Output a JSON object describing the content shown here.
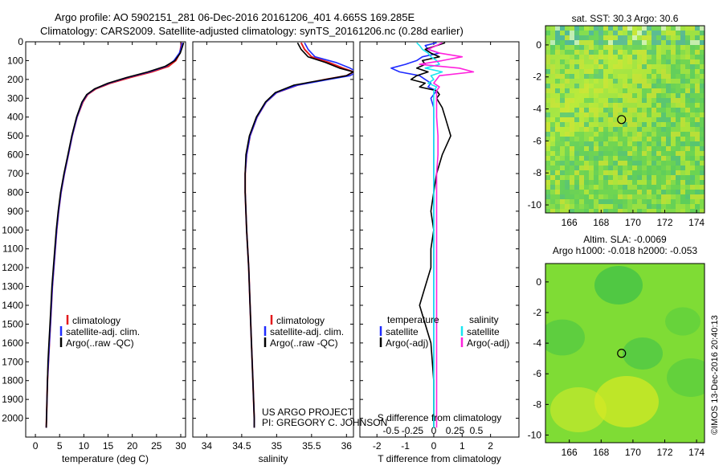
{
  "header": {
    "line1": "Argo profile: AO 5902151_281 06-Dec-2016 20161206_401 4.665S 169.285E",
    "line2": "Climatology: CARS2009. Satellite-adjusted climatology: synTS_20161206.nc (0.28d earlier)"
  },
  "map_sst": {
    "title": "sat. SST: 30.3 Argo: 30.6",
    "xticks": [
      "166",
      "168",
      "170",
      "172",
      "174"
    ],
    "yticks": [
      "0",
      "-2",
      "-4",
      "-6",
      "-8",
      "-10"
    ]
  },
  "map_sla": {
    "title1": "Altim. SLA: -0.0069",
    "title2": "Argo h1000: -0.018 h2000: -0.053",
    "xticks": [
      "166",
      "168",
      "170",
      "172",
      "174"
    ],
    "yticks": [
      "0",
      "-2",
      "-4",
      "-6",
      "-8",
      "-10"
    ]
  },
  "footer": {
    "project": "US ARGO PROJECT",
    "pi": "PI: GREGORY C. JOHNSON",
    "imos": "©IMOS 13-Dec-2016 20:40:13"
  },
  "colors": {
    "climatology": "#e31a1c",
    "satellite": "#1f2bff",
    "argo": "#000000",
    "sat_sal": "#19e6f0",
    "argo_sal": "#ff22dd"
  },
  "chart_data": [
    {
      "type": "line",
      "id": "temperature",
      "xlabel": "temperature (deg C)",
      "ylabel": "",
      "xlim": [
        -2,
        31
      ],
      "ylim": [
        2100,
        0
      ],
      "xticks": [
        0,
        5,
        10,
        15,
        20,
        25,
        30
      ],
      "xticklabels": [
        "0",
        "5",
        "10",
        "15",
        "20",
        "25",
        "30"
      ],
      "yticks": [
        0,
        100,
        200,
        300,
        400,
        500,
        600,
        700,
        800,
        900,
        1000,
        1100,
        1200,
        1300,
        1400,
        1500,
        1600,
        1700,
        1800,
        1900,
        2000
      ],
      "yticklabels": [
        "0",
        "100",
        "200",
        "300",
        "400",
        "500",
        "600",
        "700",
        "800",
        "900",
        "1000",
        "1100",
        "1200",
        "1300",
        "1400",
        "1500",
        "1600",
        "1700",
        "1800",
        "1900",
        "2000"
      ],
      "legend": [
        "climatology",
        "satellite-adj. clim.",
        "Argo(..raw -QC)"
      ],
      "depth": [
        5,
        30,
        60,
        100,
        130,
        160,
        190,
        220,
        250,
        280,
        320,
        400,
        500,
        600,
        700,
        800,
        900,
        1000,
        1100,
        1200,
        1300,
        1400,
        1500,
        1600,
        1700,
        1800,
        1900,
        2000,
        2050
      ],
      "series": [
        {
          "name": "climatology",
          "values": [
            30.2,
            30.0,
            29.8,
            29.0,
            27.5,
            24.0,
            19.5,
            15.5,
            12.5,
            10.8,
            9.8,
            8.6,
            7.6,
            6.8,
            6.0,
            5.3,
            4.8,
            4.4,
            4.1,
            3.8,
            3.5,
            3.3,
            3.1,
            2.9,
            2.7,
            2.5,
            2.4,
            2.3,
            2.25
          ]
        },
        {
          "name": "satellite-adj. clim.",
          "values": [
            30.3,
            30.1,
            29.7,
            28.6,
            27.0,
            23.5,
            19.0,
            15.2,
            12.3,
            10.7,
            9.7,
            8.6,
            7.6,
            6.8,
            6.0,
            5.3,
            4.8,
            4.4,
            4.1,
            3.8,
            3.5,
            3.3,
            3.1,
            2.9,
            2.7,
            2.5,
            2.4,
            2.3,
            2.25
          ]
        },
        {
          "name": "Argo(..raw -QC)",
          "values": [
            30.6,
            30.3,
            29.9,
            28.8,
            26.8,
            23.2,
            18.8,
            15.0,
            12.2,
            10.6,
            9.6,
            8.5,
            7.5,
            6.7,
            5.9,
            5.2,
            4.7,
            4.3,
            4.0,
            3.7,
            3.4,
            3.2,
            3.0,
            2.8,
            2.6,
            2.5,
            2.4,
            2.3,
            2.25
          ]
        }
      ]
    },
    {
      "type": "line",
      "id": "salinity",
      "xlabel": "salinity",
      "xlim": [
        33.8,
        36.1
      ],
      "ylim": [
        2100,
        0
      ],
      "xticks": [
        34,
        34.5,
        35,
        35.5,
        36
      ],
      "xticklabels": [
        "34",
        "34.5",
        "35",
        "35.5",
        "36"
      ],
      "legend": [
        "climatology",
        "satellite-adj. clim.",
        "Argo(..raw -QC)"
      ],
      "depth": [
        5,
        40,
        80,
        110,
        140,
        160,
        180,
        200,
        230,
        270,
        320,
        400,
        500,
        600,
        700,
        800,
        900,
        1000,
        1200,
        1400,
        1600,
        1800,
        2000,
        2050
      ],
      "series": [
        {
          "name": "climatology",
          "values": [
            35.35,
            35.4,
            35.5,
            35.75,
            35.95,
            36.1,
            36.0,
            35.7,
            35.3,
            35.0,
            34.85,
            34.72,
            34.62,
            34.57,
            34.55,
            34.55,
            34.56,
            34.57,
            34.6,
            34.62,
            34.64,
            34.66,
            34.68,
            34.68
          ]
        },
        {
          "name": "satellite-adj. clim.",
          "values": [
            35.4,
            35.45,
            35.55,
            35.85,
            36.05,
            36.15,
            36.05,
            35.75,
            35.3,
            35.0,
            34.85,
            34.72,
            34.62,
            34.57,
            34.55,
            34.55,
            34.56,
            34.57,
            34.6,
            34.62,
            34.64,
            34.66,
            34.68,
            34.68
          ]
        },
        {
          "name": "Argo(..raw -QC)",
          "values": [
            35.3,
            35.35,
            35.45,
            35.7,
            35.9,
            36.1,
            36.0,
            35.7,
            35.25,
            34.98,
            34.84,
            34.71,
            34.61,
            34.56,
            34.55,
            34.55,
            34.56,
            34.57,
            34.6,
            34.62,
            34.64,
            34.66,
            34.68,
            34.68
          ]
        }
      ]
    },
    {
      "type": "line",
      "id": "difference",
      "xlabel": "T difference from climatology",
      "xlabel2": "S difference from climatology",
      "xlim": [
        -2.6,
        3.0
      ],
      "ylim": [
        2100,
        0
      ],
      "xticks": [
        -2,
        -1,
        0,
        1,
        2
      ],
      "xticklabels": [
        "-2",
        "-1",
        "0",
        "1",
        "2"
      ],
      "xticks2": [
        -1.5,
        -0.75,
        0,
        0.75,
        1.5
      ],
      "xticklabels2": [
        "-0.5",
        "-0.25",
        "0",
        "0.25",
        "0.5"
      ],
      "legend_title_t": "temperature",
      "legend_title_s": "salinity",
      "legend": [
        "satellite",
        "Argo(-adj)",
        "satellite",
        "Argo(-adj)"
      ],
      "depth": [
        5,
        20,
        40,
        60,
        80,
        100,
        120,
        140,
        160,
        180,
        200,
        220,
        240,
        260,
        280,
        300,
        350,
        400,
        500,
        600,
        700,
        800,
        900,
        1000,
        1100,
        1200,
        1300,
        1400,
        1500,
        1600,
        1800,
        2000,
        2050
      ],
      "series": [
        {
          "name": "T satellite",
          "values": [
            0.1,
            -0.3,
            -0.2,
            0.2,
            -0.4,
            -0.6,
            -1.0,
            -1.5,
            -1.2,
            -0.5,
            -0.3,
            -0.1,
            -0.2,
            0.1,
            0.0,
            -0.1,
            0.0,
            0.0,
            0.0,
            0.0,
            0.0,
            0.0,
            0.0,
            0.0,
            0.0,
            0.0,
            0.0,
            0.0,
            0.0,
            0.0,
            0.0,
            0.0,
            0.0
          ]
        },
        {
          "name": "T Argo(-adj)",
          "values": [
            0.4,
            0.1,
            -0.3,
            -0.1,
            0.2,
            -0.4,
            -0.3,
            -0.6,
            -0.2,
            -0.6,
            -0.8,
            -0.3,
            -0.5,
            0.1,
            0.2,
            0.1,
            0.3,
            0.4,
            0.6,
            0.3,
            0.1,
            0.0,
            -0.1,
            0.0,
            -0.1,
            -0.1,
            -0.3,
            -0.5,
            -0.3,
            -0.1,
            0.0,
            0.0,
            0.0
          ]
        },
        {
          "name": "S satellite",
          "values": [
            -0.6,
            -0.5,
            -0.4,
            -0.2,
            -0.1,
            0.1,
            0.2,
            -0.3,
            0.3,
            -0.1,
            0.0,
            -0.2,
            0.1,
            0.0,
            0.0,
            0.0,
            0.0,
            0.0,
            0.0,
            0.0,
            0.0,
            0.0,
            0.0,
            0.0,
            0.0,
            0.0,
            0.0,
            0.0,
            0.0,
            0.0,
            0.0,
            0.0,
            0.0
          ]
        },
        {
          "name": "S Argo(-adj)",
          "values": [
            0.3,
            0.1,
            -0.2,
            0.2,
            1.0,
            0.3,
            -0.5,
            0.9,
            1.4,
            0.2,
            0.1,
            0.0,
            0.2,
            0.1,
            0.1,
            0.1,
            0.1,
            0.1,
            0.15,
            0.15,
            0.1,
            0.1,
            0.1,
            0.1,
            0.1,
            0.1,
            0.1,
            0.1,
            0.1,
            0.1,
            0.1,
            0.1,
            0.1
          ]
        }
      ]
    },
    {
      "type": "heatmap",
      "id": "sst_map",
      "xlim": [
        164.5,
        174.5
      ],
      "ylim": [
        -10.5,
        1.2
      ],
      "argo_position": {
        "lon": 169.285,
        "lat": -4.665
      }
    },
    {
      "type": "heatmap",
      "id": "sla_map",
      "xlim": [
        164.5,
        174.5
      ],
      "ylim": [
        -10.5,
        1.2
      ],
      "argo_position": {
        "lon": 169.285,
        "lat": -4.665
      }
    }
  ]
}
